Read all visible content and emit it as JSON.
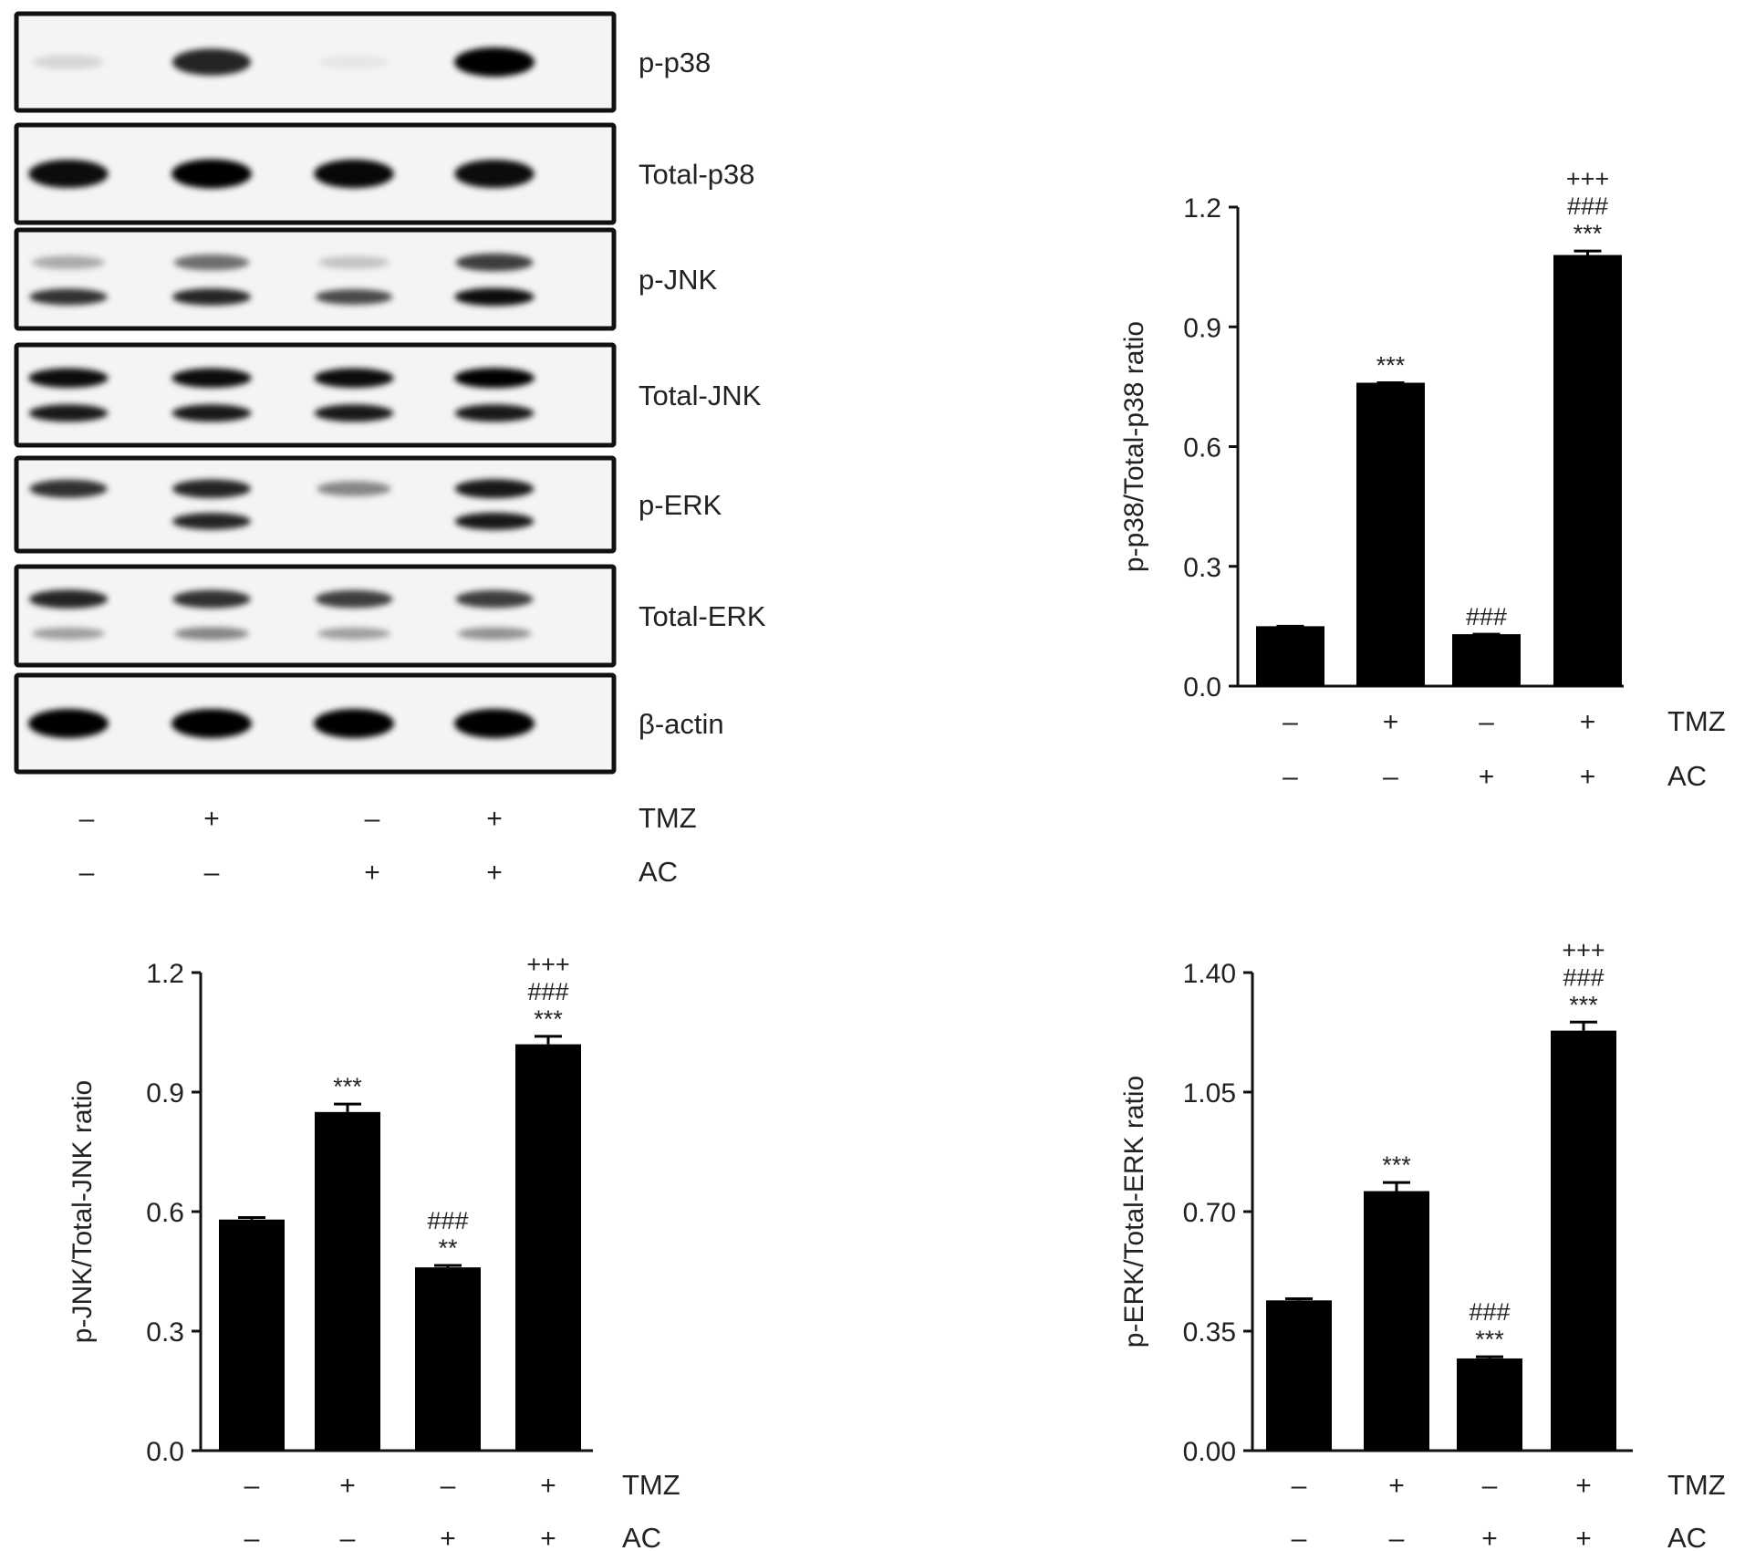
{
  "blot": {
    "bands": [
      {
        "label": "p-p38",
        "lanes": [
          0.12,
          0.85,
          0.06,
          1.0
        ],
        "lanes_lower": null
      },
      {
        "label": "Total-p38",
        "lanes": [
          0.95,
          1.0,
          0.97,
          0.95
        ],
        "lanes_lower": null
      },
      {
        "label": "p-JNK",
        "lanes": [
          0.3,
          0.55,
          0.2,
          0.75
        ],
        "lanes_lower": [
          0.8,
          0.85,
          0.7,
          0.95
        ]
      },
      {
        "label": "Total-JNK",
        "lanes": [
          0.95,
          0.95,
          0.95,
          1.0
        ],
        "lanes_lower": [
          0.9,
          0.9,
          0.9,
          0.9
        ]
      },
      {
        "label": "p-ERK",
        "lanes": [
          0.8,
          0.85,
          0.45,
          0.9
        ],
        "lanes_lower": [
          0.0,
          0.85,
          0.0,
          0.9
        ]
      },
      {
        "label": "Total-ERK",
        "lanes": [
          0.85,
          0.8,
          0.75,
          0.75
        ],
        "lanes_lower": [
          0.35,
          0.45,
          0.35,
          0.4
        ]
      },
      {
        "label": "β-actin",
        "lanes": [
          1.0,
          1.0,
          1.0,
          1.0
        ],
        "lanes_lower": null
      }
    ],
    "treatments": [
      {
        "name": "TMZ",
        "signs": [
          "–",
          "+",
          "–",
          "+"
        ]
      },
      {
        "name": "AC",
        "signs": [
          "–",
          "–",
          "+",
          "+"
        ]
      }
    ]
  },
  "chart_data": [
    {
      "type": "bar",
      "ylabel": "p-p38/Total-p38 ratio",
      "ylim": [
        0,
        1.2
      ],
      "yticks": [
        "0.0",
        "0.3",
        "0.6",
        "0.9",
        "1.2"
      ],
      "values": [
        0.15,
        0.76,
        0.13,
        1.08
      ],
      "errors": [
        0.0,
        0.0,
        0.0,
        0.01
      ],
      "annotations": [
        [],
        [
          "***"
        ],
        [
          "###"
        ],
        [
          "***",
          "###",
          "+++"
        ]
      ],
      "treatments": [
        {
          "name": "TMZ",
          "signs": [
            "–",
            "+",
            "–",
            "+"
          ]
        },
        {
          "name": "AC",
          "signs": [
            "–",
            "–",
            "+",
            "+"
          ]
        }
      ]
    },
    {
      "type": "bar",
      "ylabel": "p-JNK/Total-JNK ratio",
      "ylim": [
        0,
        1.2
      ],
      "yticks": [
        "0.0",
        "0.3",
        "0.6",
        "0.9",
        "1.2"
      ],
      "values": [
        0.58,
        0.85,
        0.46,
        1.02
      ],
      "errors": [
        0.005,
        0.02,
        0.005,
        0.02
      ],
      "annotations": [
        [],
        [
          "***"
        ],
        [
          "**",
          "###"
        ],
        [
          "***",
          "###",
          "+++"
        ]
      ],
      "treatments": [
        {
          "name": "TMZ",
          "signs": [
            "–",
            "+",
            "–",
            "+"
          ]
        },
        {
          "name": "AC",
          "signs": [
            "–",
            "–",
            "+",
            "+"
          ]
        }
      ]
    },
    {
      "type": "bar",
      "ylabel": "p-ERK/Total-ERK ratio",
      "ylim": [
        0,
        1.4
      ],
      "yticks": [
        "0.00",
        "0.35",
        "0.70",
        "1.05",
        "1.40"
      ],
      "values": [
        0.44,
        0.76,
        0.27,
        1.23
      ],
      "errors": [
        0.005,
        0.025,
        0.005,
        0.025
      ],
      "annotations": [
        [],
        [
          "***"
        ],
        [
          "***",
          "###"
        ],
        [
          "***",
          "###",
          "+++"
        ]
      ],
      "treatments": [
        {
          "name": "TMZ",
          "signs": [
            "–",
            "+",
            "–",
            "+"
          ]
        },
        {
          "name": "AC",
          "signs": [
            "–",
            "–",
            "+",
            "+"
          ]
        }
      ]
    }
  ]
}
